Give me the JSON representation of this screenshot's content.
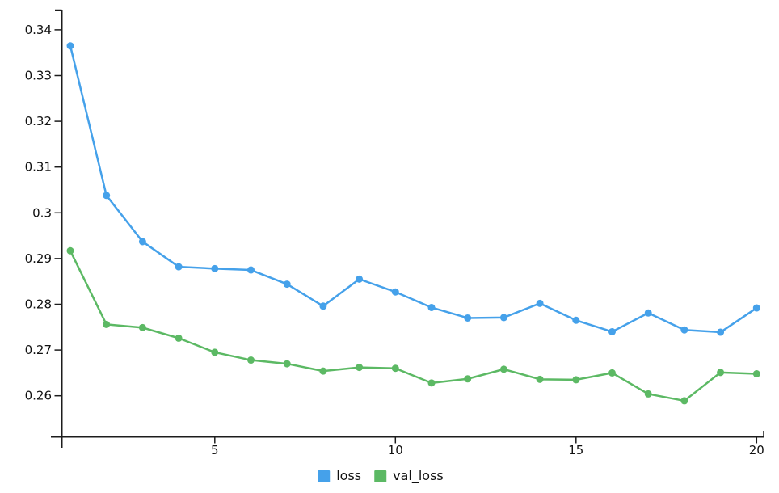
{
  "chart_data": {
    "type": "line",
    "title": "",
    "xlabel": "",
    "ylabel": "",
    "grid": false,
    "legend_position": "bottom-center",
    "x": [
      1,
      2,
      3,
      4,
      5,
      6,
      7,
      8,
      9,
      10,
      11,
      12,
      13,
      14,
      15,
      16,
      17,
      18,
      19,
      20
    ],
    "series": [
      {
        "name": "loss",
        "color": "#45a1ea",
        "values": [
          0.3365,
          0.3038,
          0.2937,
          0.2882,
          0.2878,
          0.2875,
          0.2844,
          0.2796,
          0.2855,
          0.2827,
          0.2793,
          0.277,
          0.2771,
          0.2802,
          0.2765,
          0.274,
          0.2781,
          0.2744,
          0.2739,
          0.2792
        ]
      },
      {
        "name": "val_loss",
        "color": "#5cb964",
        "values": [
          0.2917,
          0.2756,
          0.2749,
          0.2726,
          0.2695,
          0.2678,
          0.267,
          0.2654,
          0.2662,
          0.266,
          0.2628,
          0.2637,
          0.2658,
          0.2636,
          0.2635,
          0.265,
          0.2604,
          0.2589,
          0.2651,
          0.2648
        ]
      }
    ],
    "xlim": [
      1,
      20
    ],
    "ylim": [
      0.251,
      0.344
    ],
    "xtick_values": [
      5,
      10,
      15,
      20
    ],
    "xtick_labels": [
      "5",
      "10",
      "15",
      "20"
    ],
    "ytick_values": [
      0.26,
      0.27,
      0.28,
      0.29,
      0.3,
      0.31,
      0.32,
      0.33,
      0.34
    ],
    "ytick_labels": [
      "0.26",
      "0.27",
      "0.28",
      "0.29",
      "0.3",
      "0.31",
      "0.32",
      "0.33",
      "0.34"
    ],
    "axis_color": "#1c1c1c"
  }
}
